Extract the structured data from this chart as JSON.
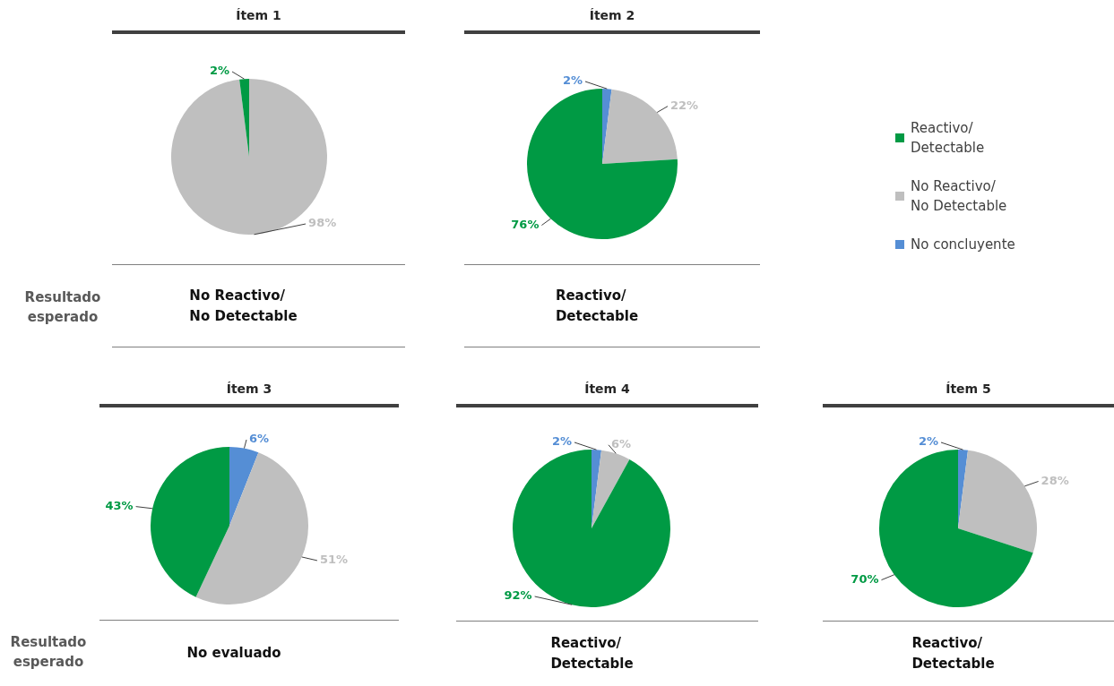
{
  "chart_data": [
    {
      "type": "pie",
      "title": "Ítem 1",
      "categories": [
        null,
        null
      ],
      "values": [
        2,
        98
      ],
      "colors": [
        "#009a44",
        "#bfbfbf"
      ],
      "value_labels": [
        "2%",
        "98%"
      ],
      "annotations": [
        "No Reactivo/\nNo Detectable"
      ]
    },
    {
      "type": "pie",
      "title": "Ítem 2",
      "categories": [
        "Reactivo/\nDetectable",
        "No Reactivo/\nNo Detectable",
        "No concluyente"
      ],
      "values": [
        76,
        22,
        2
      ],
      "colors": [
        "#009a44",
        "#bfbfbf",
        "#558ed5"
      ],
      "value_labels": [
        "76%",
        "22%",
        "2%"
      ],
      "legend": "right",
      "annotations": [
        "Reactivo/\nDetectable"
      ]
    },
    {
      "type": "other",
      "annotations": [
        "Resultado esperado"
      ]
    },
    {
      "type": "pie",
      "title": "Ítem 3",
      "categories": [
        null,
        null,
        null
      ],
      "values": [
        43,
        51,
        6
      ],
      "colors": [
        "#009a44",
        "#bfbfbf",
        "#558ed5"
      ],
      "value_labels": [
        "43%",
        "51%",
        "6%"
      ],
      "annotations": [
        "No evaluado"
      ]
    },
    {
      "type": "pie",
      "title": "Ítem 4",
      "categories": [
        null,
        null,
        null
      ],
      "values": [
        92,
        6,
        2
      ],
      "colors": [
        "#009a44",
        "#bfbfbf",
        "#558ed5"
      ],
      "value_labels": [
        "92%",
        "6%",
        "2%"
      ],
      "annotations": [
        "Reactivo/\nDetectable"
      ]
    },
    {
      "type": "pie",
      "title": "Ítem 5",
      "categories": [
        null,
        null,
        null
      ],
      "values": [
        70,
        28,
        2
      ],
      "colors": [
        "#009a44",
        "#bfbfbf",
        "#558ed5"
      ],
      "value_labels": [
        "70%",
        "28%",
        "2%"
      ],
      "annotations": [
        "Reactivo/\nDetectable"
      ]
    },
    {
      "type": "other",
      "annotations": [
        "Resultado esperado"
      ]
    }
  ]
}
